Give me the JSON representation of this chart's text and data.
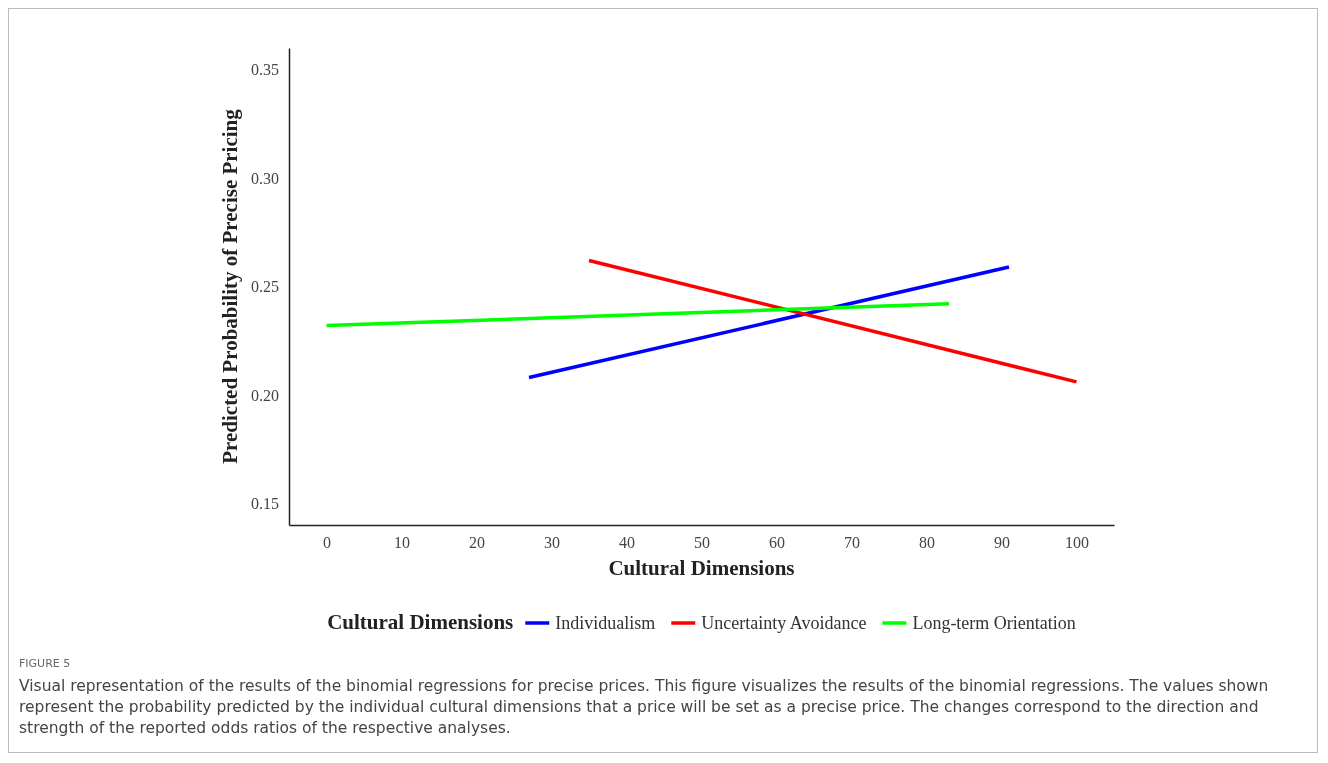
{
  "chart_data": {
    "type": "line",
    "xlabel": "Cultural Dimensions",
    "ylabel": "Predicted Probability of Precise Pricing",
    "legend_title": "Cultural Dimensions",
    "xlim": [
      -5,
      105
    ],
    "xticks": [
      0,
      10,
      20,
      30,
      40,
      50,
      60,
      70,
      80,
      90,
      100
    ],
    "ylim": [
      0.14,
      0.36
    ],
    "yticks": [
      0.15,
      {
        "value": 0.2,
        "label": "0.20"
      },
      0.25,
      {
        "value": 0.3,
        "label": "0.30"
      },
      0.35
    ],
    "grid": false,
    "legend": "bottom",
    "line_style": "solid",
    "series": [
      {
        "name": "Individualism",
        "color": "#0000ff",
        "x": [
          27,
          91
        ],
        "values": [
          0.208,
          0.259
        ]
      },
      {
        "name": "Uncertainty Avoidance",
        "color": "#ff0000",
        "x": [
          35,
          100
        ],
        "values": [
          0.262,
          0.206
        ]
      },
      {
        "name": "Long-term Orientation",
        "color": "#00ff00",
        "x": [
          0,
          83
        ],
        "values": [
          0.232,
          0.242
        ]
      }
    ],
    "annotations": [
      "FIGURE 5",
      "Visual representation of the results of the binomial regressions for precise prices. This figure visualizes the results of the binomial regressions. The values shown represent the probability predicted by the individual cultural dimensions that a price will be set as a precise price. The changes correspond to the direction and strength of the reported odds ratios of the respective analyses."
    ]
  }
}
